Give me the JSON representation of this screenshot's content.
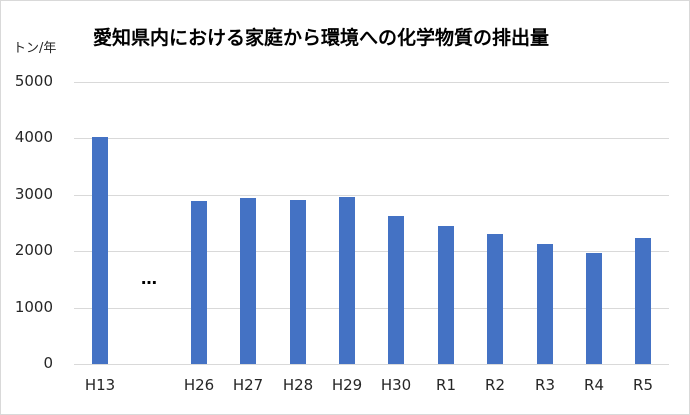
{
  "chart_data": {
    "type": "bar",
    "title": "愛知県内における家庭から環境への化学物質の排出量",
    "ylabel": "トン/年",
    "xlabel": "",
    "ylim": [
      0,
      5000
    ],
    "yticks": [
      0,
      1000,
      2000,
      3000,
      4000,
      5000
    ],
    "grid": true,
    "legend": "none",
    "categories": [
      "H13",
      "…",
      "H26",
      "H27",
      "H28",
      "H29",
      "H30",
      "R1",
      "R2",
      "R3",
      "R4",
      "R5"
    ],
    "values": [
      4030,
      null,
      2890,
      2940,
      2910,
      2960,
      2620,
      2450,
      2300,
      2120,
      1960,
      2230
    ],
    "series": [
      {
        "name": "排出量",
        "color": "#4472C4",
        "values": [
          4030,
          null,
          2890,
          2940,
          2910,
          2960,
          2620,
          2450,
          2300,
          2120,
          1960,
          2230
        ]
      }
    ],
    "annotations": [
      "…"
    ]
  },
  "labels": {
    "title": "愛知県内における家庭から環境への化学物質の排出量",
    "unit": "トン/年",
    "ellipsis": "…",
    "yticks": [
      "0",
      "1000",
      "2000",
      "3000",
      "4000",
      "5000"
    ]
  }
}
